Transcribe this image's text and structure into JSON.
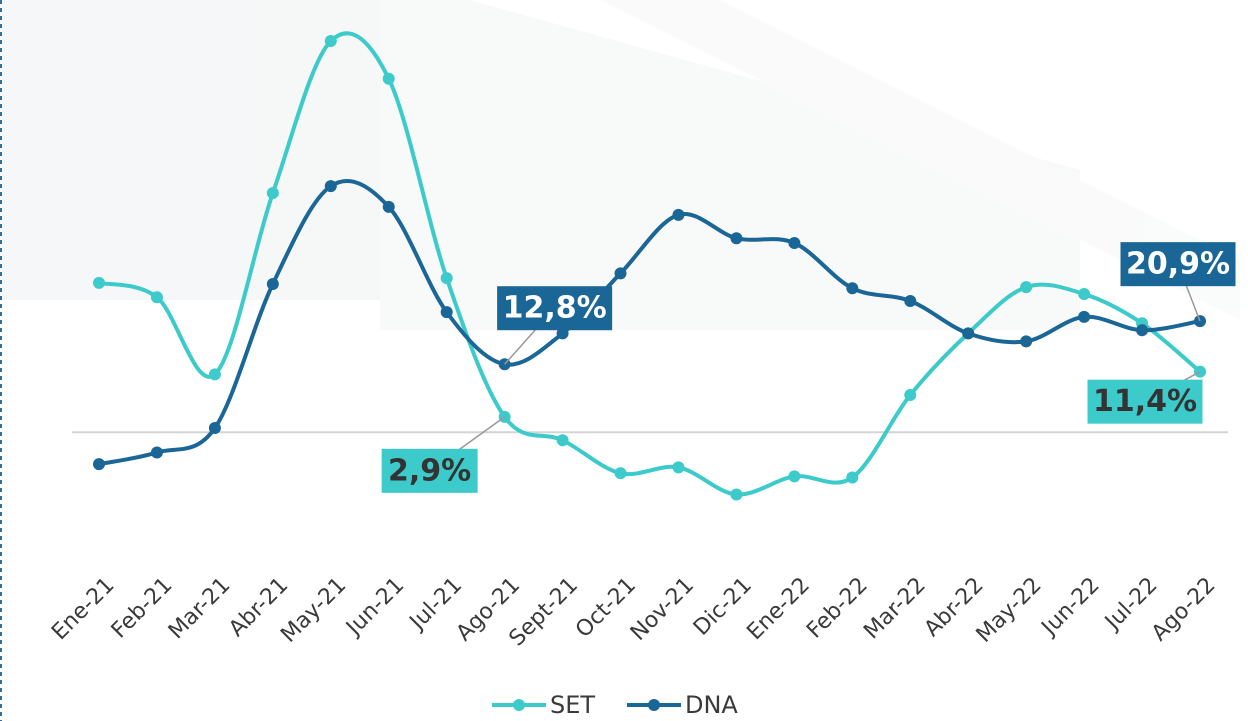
{
  "chart_data": {
    "type": "line",
    "categories": [
      "Ene-21",
      "Feb-21",
      "Mar-21",
      "Abr-21",
      "May-21",
      "Jun-21",
      "Jul-21",
      "Ago-21",
      "Sept-21",
      "Oct-21",
      "Nov-21",
      "Dic-21",
      "Ene-22",
      "Feb-22",
      "Mar-22",
      "Abr-22",
      "May-22",
      "Jun-22",
      "Jul-22",
      "Ago-22"
    ],
    "ylim": [
      -15,
      80
    ],
    "series": [
      {
        "name": "SET",
        "color": "#3ccaca",
        "values": [
          28.1,
          25.4,
          10.9,
          45.0,
          73.6,
          66.5,
          29.0,
          2.9,
          -1.5,
          -7.7,
          -6.6,
          -11.7,
          -8.3,
          -8.5,
          7.0,
          18.6,
          27.3,
          26.0,
          20.5,
          11.4
        ],
        "value_labels": [
          null,
          null,
          null,
          null,
          null,
          null,
          null,
          "2,9%",
          null,
          null,
          null,
          null,
          null,
          null,
          null,
          null,
          null,
          null,
          null,
          "11,4%"
        ]
      },
      {
        "name": "DNA",
        "color": "#1a6696",
        "values": [
          -6.0,
          -3.8,
          0.8,
          27.9,
          46.3,
          42.4,
          22.6,
          12.8,
          18.6,
          29.9,
          40.9,
          36.5,
          35.6,
          27.1,
          24.7,
          18.6,
          17.1,
          21.7,
          19.2,
          20.9
        ],
        "value_labels": [
          null,
          null,
          null,
          null,
          null,
          null,
          null,
          "12,8%",
          null,
          null,
          null,
          null,
          null,
          null,
          null,
          null,
          null,
          null,
          null,
          "20,9%"
        ]
      }
    ]
  }
}
